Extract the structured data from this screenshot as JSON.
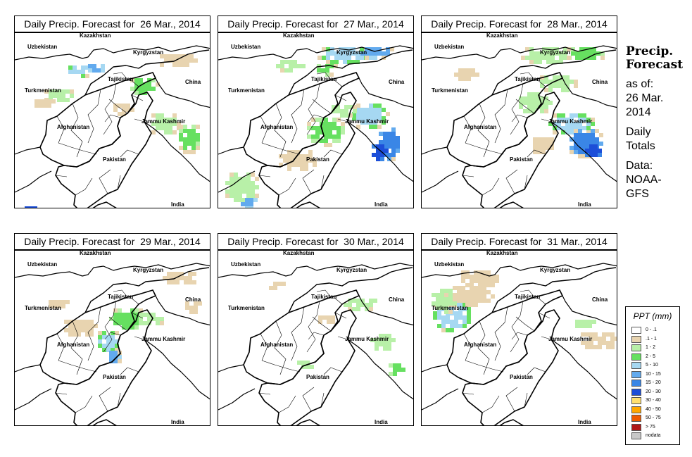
{
  "panels": [
    {
      "title": "Daily Precip. Forecast for  26 Mar., 2014",
      "pattern": 0
    },
    {
      "title": "Daily Precip. Forecast for  27 Mar., 2014",
      "pattern": 1
    },
    {
      "title": "Daily Precip. Forecast for  28 Mar., 2014",
      "pattern": 2
    },
    {
      "title": "Daily Precip. Forecast for  29 Mar., 2014",
      "pattern": 3
    },
    {
      "title": "Daily Precip. Forecast for  30 Mar., 2014",
      "pattern": 4
    },
    {
      "title": "Daily Precip. Forecast for  31 Mar., 2014",
      "pattern": 5
    }
  ],
  "map_labels": {
    "kazakhstan": "Kazakhstan",
    "uzbekistan": "Uzbekistan",
    "kyrgyzstan": "Kyrgyzstan",
    "tajikistan": "Tajikistan",
    "china": "China",
    "turkmenistan": "Turkmenistan",
    "afghanistan": "Afghanistan",
    "jammu_kashmir": "Jammu Kashmir",
    "pakistan": "Pakistan",
    "india": "India"
  },
  "side": {
    "header_line1": "Precip.",
    "header_line2": "Forecast",
    "asof_line1": "as of:",
    "asof_line2": "26 Mar.",
    "asof_line3": "2014",
    "totals_line1": "Daily",
    "totals_line2": "Totals",
    "source_line1": "Data:",
    "source_line2": "NOAA-",
    "source_line3": "GFS"
  },
  "legend": {
    "title": "PPT (mm)",
    "items": [
      {
        "label": "0 - .1",
        "color": "#ffffff"
      },
      {
        "label": ".1 - 1",
        "color": "#e8d4b0"
      },
      {
        "label": "1 - 2",
        "color": "#b8f0a8"
      },
      {
        "label": "2 - 5",
        "color": "#66e060"
      },
      {
        "label": "5 - 10",
        "color": "#a6d8f2"
      },
      {
        "label": "10 - 15",
        "color": "#62aaee"
      },
      {
        "label": "15 - 20",
        "color": "#3a86e6"
      },
      {
        "label": "20 - 30",
        "color": "#1c4ed8"
      },
      {
        "label": "30 - 40",
        "color": "#ffe070"
      },
      {
        "label": "40 - 50",
        "color": "#ffa800"
      },
      {
        "label": "50 - 75",
        "color": "#ee5a00"
      },
      {
        "label": "> 75",
        "color": "#b01818"
      },
      {
        "label": "nodata",
        "color": "#c8c8c8"
      }
    ]
  }
}
